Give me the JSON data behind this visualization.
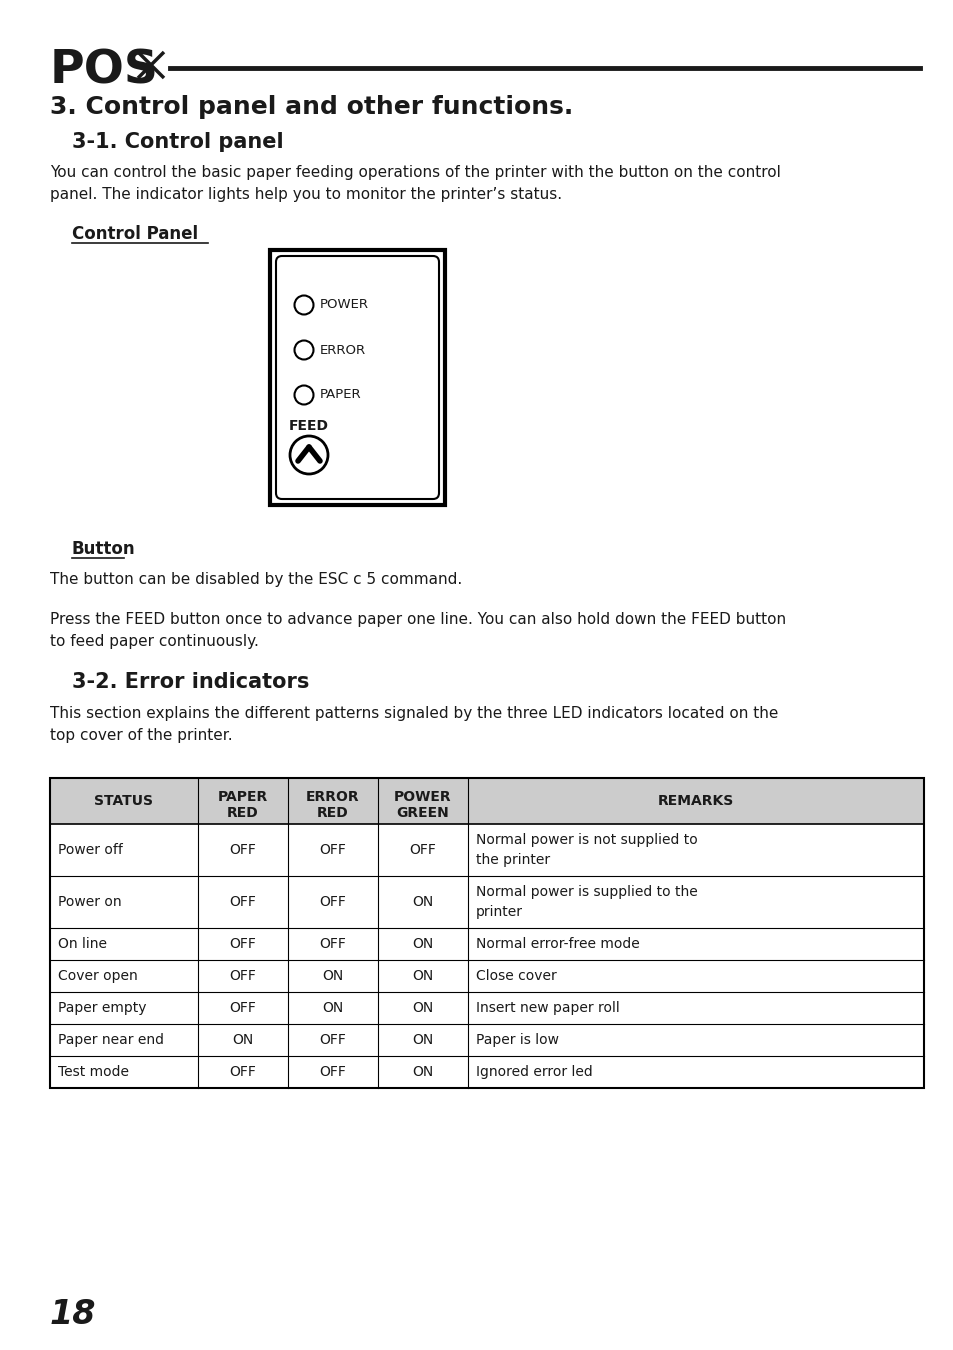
{
  "title": "3. Control panel and other functions.",
  "subtitle": "3-1. Control panel",
  "body_text1": "You can control the basic paper feeding operations of the printer with the button on the control\npanel. The indicator lights help you to monitor the printer’s status.",
  "control_panel_label": "Control Panel",
  "button_label": "Button",
  "button_text1": "The button can be disabled by the ESC c 5 command.",
  "button_text2": "Press the FEED button once to advance paper one line. You can also hold down the FEED button\nto feed paper continuously.",
  "section2_title": "3-2. Error indicators",
  "section2_text": "This section explains the different patterns signaled by the three LED indicators located on the\ntop cover of the printer.",
  "table_rows": [
    [
      "Power off",
      "OFF",
      "OFF",
      "OFF",
      "Normal power is not supplied to\nthe printer"
    ],
    [
      "Power on",
      "OFF",
      "OFF",
      "ON",
      "Normal power is supplied to the\nprinter"
    ],
    [
      "On line",
      "OFF",
      "OFF",
      "ON",
      "Normal error-free mode"
    ],
    [
      "Cover open",
      "OFF",
      "ON",
      "ON",
      "Close cover"
    ],
    [
      "Paper empty",
      "OFF",
      "ON",
      "ON",
      "Insert new paper roll"
    ],
    [
      "Paper near end",
      "ON",
      "OFF",
      "ON",
      "Paper is low"
    ],
    [
      "Test mode",
      "OFF",
      "OFF",
      "ON",
      "Ignored error led"
    ]
  ],
  "page_number": "18",
  "bg_color": "#ffffff",
  "text_color": "#1a1a1a",
  "header_bg": "#cccccc",
  "logo_color": "#1a1a1a"
}
